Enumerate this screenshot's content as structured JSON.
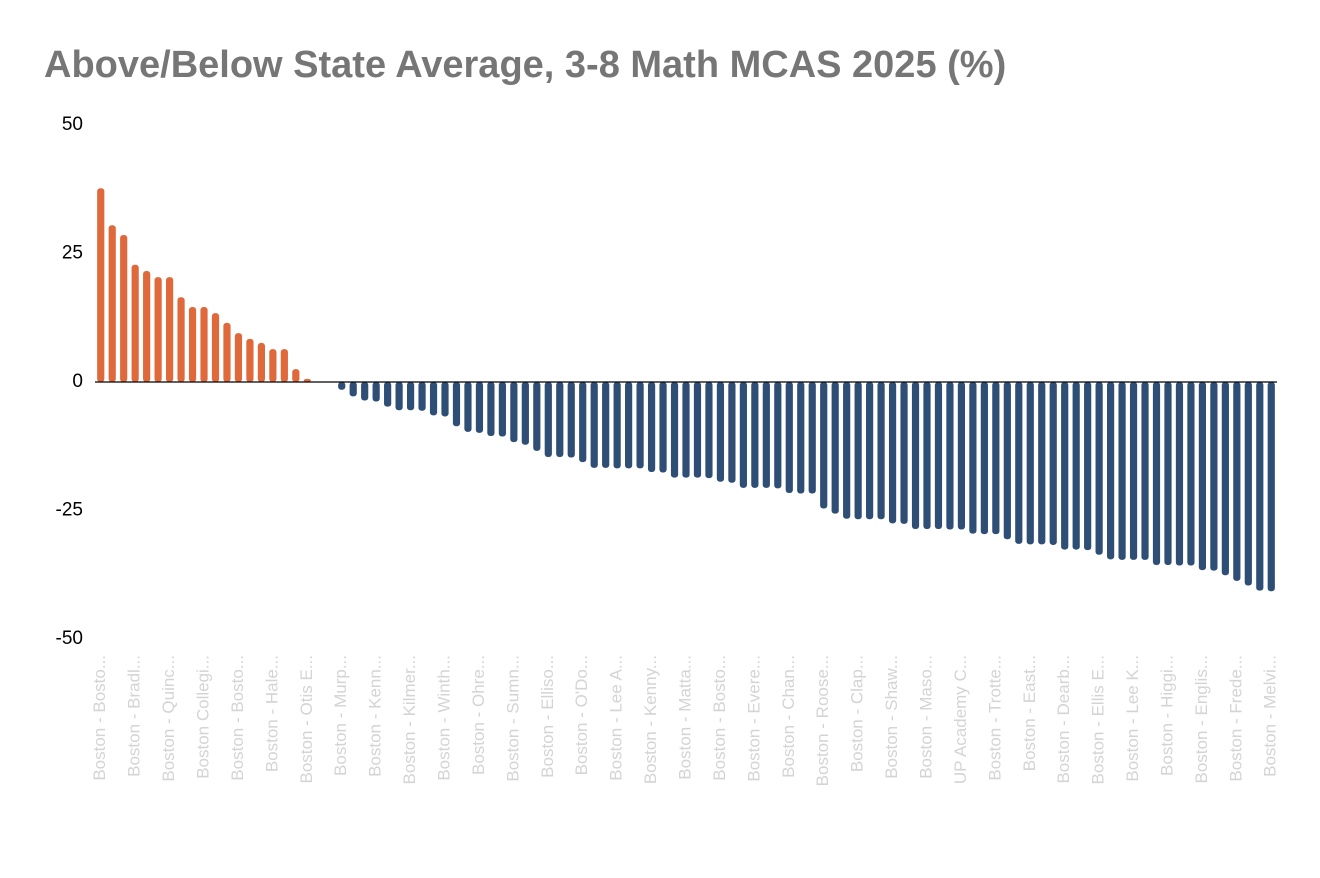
{
  "chart_data": {
    "type": "bar",
    "title": "Above/Below State Average, 3-8 Math MCAS 2025 (%)",
    "categories": [
      "Boston - Bosto...",
      null,
      null,
      "Boston - Bradl...",
      null,
      null,
      "Boston - Quinc...",
      null,
      null,
      "Boston Collegi...",
      null,
      null,
      "Boston - Bosto...",
      null,
      null,
      "Boston - Hale...",
      null,
      null,
      "Boston - Otis E...",
      null,
      null,
      "Boston - Murp...",
      null,
      null,
      "Boston - Kenn...",
      null,
      null,
      "Boston - Kilmer...",
      null,
      null,
      "Boston - Winth...",
      null,
      null,
      "Boston - Ohre...",
      null,
      null,
      "Boston - Sumn...",
      null,
      null,
      "Boston - Elliso...",
      null,
      null,
      "Boston - O'Do...",
      null,
      null,
      "Boston - Lee A...",
      null,
      null,
      "Boston - Kenny...",
      null,
      null,
      "Boston - Matta...",
      null,
      null,
      "Boston - Bosto...",
      null,
      null,
      "Boston - Evere...",
      null,
      null,
      "Boston - Chan...",
      null,
      null,
      "Boston - Roose...",
      null,
      null,
      "Boston - Clap...",
      null,
      null,
      "Boston - Shaw...",
      null,
      null,
      "Boston - Maso...",
      null,
      null,
      "UP Academy C...",
      null,
      null,
      "Boston - Trotte...",
      null,
      null,
      "Boston - East...",
      null,
      null,
      "Boston - Dearb...",
      null,
      null,
      "Boston - Ellis E...",
      null,
      null,
      "Boston - Lee K...",
      null,
      null,
      "Boston - Higgi...",
      null,
      null,
      "Boston - Englis...",
      null,
      null,
      "Boston - Frede...",
      null,
      null,
      "Boston - Melvi..."
    ],
    "values": [
      37.7,
      30.5,
      28.6,
      22.8,
      21.6,
      20.4,
      20.4,
      16.5,
      14.6,
      14.6,
      13.4,
      11.5,
      9.5,
      8.4,
      7.6,
      6.4,
      6.4,
      2.5,
      0.6,
      0,
      0,
      -1.5,
      -2.8,
      -3.6,
      -3.8,
      -4.8,
      -5.5,
      -5.5,
      -5.6,
      -6.5,
      -6.7,
      -8.6,
      -9.7,
      -9.9,
      -10.5,
      -10.6,
      -11.7,
      -12.2,
      -13.4,
      -14.6,
      -14.6,
      -14.7,
      -15.6,
      -16.7,
      -16.7,
      -16.8,
      -16.8,
      -16.8,
      -17.5,
      -17.6,
      -18.6,
      -18.6,
      -18.6,
      -18.7,
      -19.4,
      -19.6,
      -20.6,
      -20.6,
      -20.6,
      -20.7,
      -21.6,
      -21.7,
      -21.7,
      -24.6,
      -25.6,
      -26.6,
      -26.7,
      -26.7,
      -26.7,
      -27.5,
      -27.6,
      -28.6,
      -28.6,
      -28.6,
      -28.7,
      -28.7,
      -29.5,
      -29.6,
      -29.6,
      -30.6,
      -31.5,
      -31.6,
      -31.6,
      -31.7,
      -32.6,
      -32.6,
      -32.7,
      -33.6,
      -34.5,
      -34.6,
      -34.6,
      -34.6,
      -35.6,
      -35.6,
      -35.7,
      -35.7,
      -36.6,
      -36.7,
      -37.6,
      -38.7,
      -39.6,
      -40.6,
      -40.7
    ],
    "positive_color": "#e0693c",
    "negative_color": "#2e4e76",
    "ylim": [
      -50,
      50
    ],
    "yticks": [
      -50,
      -25,
      0,
      25,
      50
    ],
    "grid": false
  }
}
